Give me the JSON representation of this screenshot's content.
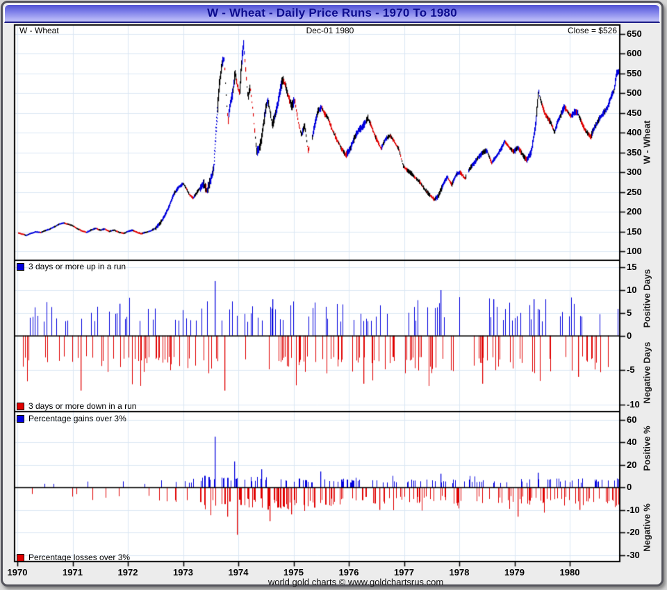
{
  "window": {
    "title": "W  -  Wheat - Daily Price Runs - 1970 To 1980",
    "footer": "world gold charts © www.goldchartsrus.com"
  },
  "header": {
    "instrument": "W  -  Wheat",
    "date": "Dec-01  1980",
    "close": "Close = $526"
  },
  "colors": {
    "up_blue": "#0000dd",
    "down_red": "#e00000",
    "neutral_black": "#000000",
    "grid_blue": "#dbe7f4",
    "panel_bg": "#ffffff",
    "margin_bg": "#ececec",
    "title_text": "#0b0b8f"
  },
  "chart_data": [
    {
      "type": "line",
      "name": "wheat-daily-price",
      "title": "W - Wheat daily close, 1970 to Dec-01 1980 (USD cents/bushel shown as $)",
      "y_axis_title": "W  -  Wheat",
      "y_ticks": [
        650,
        600,
        550,
        500,
        450,
        400,
        350,
        300,
        250,
        200,
        150,
        100
      ],
      "x_label_ticks": [
        1970,
        1971,
        1972,
        1973,
        1974,
        1975,
        1976,
        1977,
        1978,
        1979,
        1980
      ],
      "x_range": [
        1970.0,
        1980.92
      ],
      "y_range_approx": [
        77,
        674
      ],
      "close_value": 526,
      "dotted_segments": [
        [
          1973.555,
          1973.62
        ]
      ],
      "gaps": [
        [
          1975.28,
          1975.325
        ],
        [
          1978.115,
          1978.155
        ]
      ],
      "points": [
        [
          1970.0,
          148
        ],
        [
          1970.08,
          144
        ],
        [
          1970.16,
          141
        ],
        [
          1970.25,
          146
        ],
        [
          1970.33,
          150
        ],
        [
          1970.42,
          148
        ],
        [
          1970.5,
          152
        ],
        [
          1970.58,
          156
        ],
        [
          1970.66,
          162
        ],
        [
          1970.75,
          168
        ],
        [
          1970.83,
          171
        ],
        [
          1970.92,
          169
        ],
        [
          1971.0,
          165
        ],
        [
          1971.08,
          158
        ],
        [
          1971.16,
          152
        ],
        [
          1971.25,
          148
        ],
        [
          1971.33,
          154
        ],
        [
          1971.42,
          158
        ],
        [
          1971.5,
          153
        ],
        [
          1971.58,
          157
        ],
        [
          1971.66,
          151
        ],
        [
          1971.75,
          154
        ],
        [
          1971.83,
          149
        ],
        [
          1971.92,
          146
        ],
        [
          1972.0,
          150
        ],
        [
          1972.08,
          153
        ],
        [
          1972.16,
          148
        ],
        [
          1972.25,
          145
        ],
        [
          1972.33,
          149
        ],
        [
          1972.42,
          152
        ],
        [
          1972.5,
          158
        ],
        [
          1972.58,
          170
        ],
        [
          1972.66,
          188
        ],
        [
          1972.75,
          215
        ],
        [
          1972.83,
          245
        ],
        [
          1972.92,
          262
        ],
        [
          1973.0,
          272
        ],
        [
          1973.06,
          258
        ],
        [
          1973.12,
          242
        ],
        [
          1973.18,
          235
        ],
        [
          1973.25,
          250
        ],
        [
          1973.31,
          262
        ],
        [
          1973.37,
          268
        ],
        [
          1973.43,
          252
        ],
        [
          1973.49,
          280
        ],
        [
          1973.55,
          310
        ],
        [
          1973.6,
          420
        ],
        [
          1973.65,
          520
        ],
        [
          1973.7,
          575
        ],
        [
          1973.74,
          590
        ],
        [
          1973.78,
          490
        ],
        [
          1973.81,
          432
        ],
        [
          1973.85,
          470
        ],
        [
          1973.9,
          505
        ],
        [
          1973.94,
          552
        ],
        [
          1973.98,
          520
        ],
        [
          1974.02,
          500
        ],
        [
          1974.06,
          580
        ],
        [
          1974.09,
          625
        ],
        [
          1974.13,
          560
        ],
        [
          1974.17,
          490
        ],
        [
          1974.21,
          515
        ],
        [
          1974.25,
          470
        ],
        [
          1974.29,
          410
        ],
        [
          1974.33,
          352
        ],
        [
          1974.37,
          360
        ],
        [
          1974.41,
          380
        ],
        [
          1974.45,
          420
        ],
        [
          1974.49,
          455
        ],
        [
          1974.53,
          480
        ],
        [
          1974.57,
          455
        ],
        [
          1974.61,
          420
        ],
        [
          1974.65,
          440
        ],
        [
          1974.7,
          465
        ],
        [
          1974.75,
          505
        ],
        [
          1974.8,
          535
        ],
        [
          1974.85,
          520
        ],
        [
          1974.9,
          495
        ],
        [
          1974.96,
          468
        ],
        [
          1975.02,
          480
        ],
        [
          1975.08,
          430
        ],
        [
          1975.14,
          395
        ],
        [
          1975.2,
          417
        ],
        [
          1975.26,
          355
        ],
        [
          1975.32,
          375
        ],
        [
          1975.38,
          420
        ],
        [
          1975.44,
          455
        ],
        [
          1975.5,
          466
        ],
        [
          1975.56,
          450
        ],
        [
          1975.62,
          437
        ],
        [
          1975.7,
          410
        ],
        [
          1975.78,
          385
        ],
        [
          1975.86,
          360
        ],
        [
          1975.94,
          345
        ],
        [
          1976.02,
          360
        ],
        [
          1976.1,
          390
        ],
        [
          1976.18,
          408
        ],
        [
          1976.26,
          420
        ],
        [
          1976.34,
          437
        ],
        [
          1976.42,
          410
        ],
        [
          1976.5,
          385
        ],
        [
          1976.58,
          362
        ],
        [
          1976.66,
          385
        ],
        [
          1976.74,
          395
        ],
        [
          1976.82,
          378
        ],
        [
          1976.9,
          360
        ],
        [
          1976.98,
          318
        ],
        [
          1977.06,
          305
        ],
        [
          1977.14,
          295
        ],
        [
          1977.22,
          282
        ],
        [
          1977.3,
          270
        ],
        [
          1977.38,
          255
        ],
        [
          1977.46,
          242
        ],
        [
          1977.54,
          230
        ],
        [
          1977.62,
          240
        ],
        [
          1977.7,
          268
        ],
        [
          1977.78,
          290
        ],
        [
          1977.86,
          268
        ],
        [
          1977.94,
          295
        ],
        [
          1978.02,
          300
        ],
        [
          1978.1,
          285
        ],
        [
          1978.18,
          308
        ],
        [
          1978.26,
          323
        ],
        [
          1978.34,
          338
        ],
        [
          1978.42,
          350
        ],
        [
          1978.5,
          355
        ],
        [
          1978.58,
          325
        ],
        [
          1978.66,
          338
        ],
        [
          1978.74,
          355
        ],
        [
          1978.82,
          378
        ],
        [
          1978.9,
          362
        ],
        [
          1978.98,
          352
        ],
        [
          1979.06,
          362
        ],
        [
          1979.14,
          345
        ],
        [
          1979.22,
          330
        ],
        [
          1979.3,
          352
        ],
        [
          1979.38,
          420
        ],
        [
          1979.43,
          505
        ],
        [
          1979.48,
          478
        ],
        [
          1979.54,
          452
        ],
        [
          1979.6,
          438
        ],
        [
          1979.66,
          425
        ],
        [
          1979.72,
          400
        ],
        [
          1979.78,
          428
        ],
        [
          1979.84,
          448
        ],
        [
          1979.9,
          465
        ],
        [
          1979.96,
          452
        ],
        [
          1980.02,
          440
        ],
        [
          1980.08,
          452
        ],
        [
          1980.14,
          450
        ],
        [
          1980.2,
          428
        ],
        [
          1980.26,
          412
        ],
        [
          1980.32,
          400
        ],
        [
          1980.38,
          390
        ],
        [
          1980.44,
          412
        ],
        [
          1980.5,
          425
        ],
        [
          1980.56,
          440
        ],
        [
          1980.62,
          452
        ],
        [
          1980.68,
          462
        ],
        [
          1980.74,
          488
        ],
        [
          1980.8,
          505
        ],
        [
          1980.84,
          548
        ],
        [
          1980.88,
          556
        ],
        [
          1980.92,
          526
        ]
      ]
    },
    {
      "type": "bar",
      "name": "run-days",
      "legend_positive": "3 days or more up in a run",
      "legend_negative": "3 days or more down in a run",
      "axis_title_positive": "Positive Days",
      "axis_title_negative": "Negative Days",
      "y_ticks": [
        15,
        10,
        5,
        0,
        -5,
        -10
      ],
      "positive_range": [
        0,
        15
      ],
      "negative_range": [
        0,
        -11
      ],
      "typical_bar_range": [
        3,
        8
      ],
      "notable_positive": [
        [
          1971.85,
          7
        ],
        [
          1973.57,
          12
        ],
        [
          1974.62,
          8
        ],
        [
          1977.66,
          10
        ],
        [
          1978.62,
          8
        ],
        [
          1979.35,
          8
        ]
      ],
      "notable_negative": [
        [
          1971.15,
          -8
        ],
        [
          1973.75,
          -8
        ],
        [
          1976.27,
          -7
        ],
        [
          1978.42,
          -7
        ],
        [
          1980.15,
          -6
        ]
      ]
    },
    {
      "type": "bar",
      "name": "run-percent",
      "legend_positive": "Percentage gains over 3%",
      "legend_negative": "Percentage losses over 3%",
      "axis_title_positive": "Positive %",
      "axis_title_negative": "Negative %",
      "y_ticks": [
        60,
        40,
        20,
        0,
        -10,
        -20,
        -30
      ],
      "positive_range": [
        0,
        67
      ],
      "negative_range": [
        0,
        -33
      ],
      "typical_bar_range": [
        3,
        10
      ],
      "notable_positive": [
        [
          1973.57,
          45
        ],
        [
          1973.93,
          23
        ],
        [
          1974.42,
          16
        ],
        [
          1975.48,
          14
        ],
        [
          1977.66,
          12
        ],
        [
          1979.42,
          13
        ]
      ],
      "notable_negative": [
        [
          1973.8,
          -13
        ],
        [
          1973.97,
          -21
        ],
        [
          1974.56,
          -15
        ],
        [
          1974.95,
          -12
        ],
        [
          1976.55,
          -10
        ],
        [
          1979.06,
          -13
        ],
        [
          1980.17,
          -10
        ]
      ]
    }
  ],
  "activity_profile": [
    {
      "from": 1970.0,
      "to": 1971.0,
      "density": 0.1,
      "amp": 0.5
    },
    {
      "from": 1971.0,
      "to": 1972.5,
      "density": 0.15,
      "amp": 0.6
    },
    {
      "from": 1972.5,
      "to": 1973.3,
      "density": 0.35,
      "amp": 1.2
    },
    {
      "from": 1973.3,
      "to": 1975.0,
      "density": 0.85,
      "amp": 3.0
    },
    {
      "from": 1975.0,
      "to": 1976.5,
      "density": 0.7,
      "amp": 2.2
    },
    {
      "from": 1976.5,
      "to": 1977.5,
      "density": 0.55,
      "amp": 1.6
    },
    {
      "from": 1977.5,
      "to": 1979.0,
      "density": 0.6,
      "amp": 1.6
    },
    {
      "from": 1979.0,
      "to": 1980.92,
      "density": 0.65,
      "amp": 2.0
    }
  ],
  "note": "Run bars are drawn as a density-faithful procedural approximation (individual daily bars are not resolvable in the source); listed notable extremes are pinned exactly."
}
